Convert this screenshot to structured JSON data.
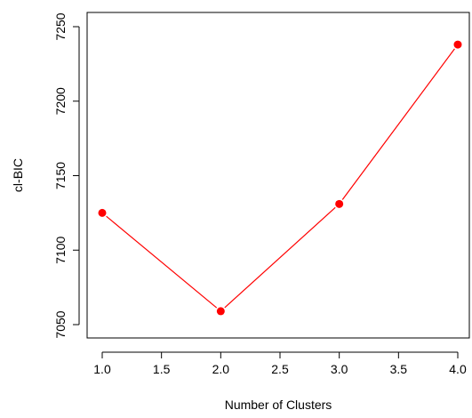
{
  "chart_data": {
    "type": "line",
    "title": "",
    "xlabel": "Number of Clusters",
    "ylabel": "cl-BIC",
    "x": [
      1,
      2,
      3,
      4
    ],
    "series": [
      {
        "values": [
          7125,
          7059,
          7131,
          7238
        ],
        "color": "#ff0000"
      }
    ],
    "xlim": [
      1,
      4
    ],
    "ylim": [
      7050,
      7250
    ],
    "xticks": [
      "1.0",
      "1.5",
      "2.0",
      "2.5",
      "3.0",
      "3.5",
      "4.0"
    ],
    "yticks": [
      "7050",
      "7100",
      "7150",
      "7200",
      "7250"
    ],
    "grid": false,
    "legend": "none",
    "marker": "filled-circle"
  }
}
